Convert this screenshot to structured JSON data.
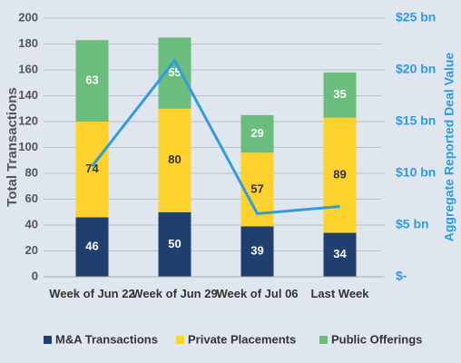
{
  "chart_data": {
    "type": "bar",
    "stacked": true,
    "categories": [
      "Week of Jun 22",
      "Week of Jun 29",
      "Week of Jul 06",
      "Last Week"
    ],
    "series": [
      {
        "name": "M&A Transactions",
        "color": "#1f3f6e",
        "label_color": "#ffffff",
        "values": [
          46,
          50,
          39,
          34
        ]
      },
      {
        "name": "Private Placements",
        "color": "#fdd22d",
        "label_color": "#333333",
        "values": [
          74,
          80,
          57,
          89
        ]
      },
      {
        "name": "Public Offerings",
        "color": "#6abd7c",
        "label_color": "#ffffff",
        "values": [
          63,
          55,
          29,
          35
        ]
      }
    ],
    "line": {
      "axis": "y2",
      "color": "#2f9be0",
      "values": [
        10.7,
        20.9,
        6.1,
        6.8
      ]
    },
    "ylabel": "Total Transactions",
    "y2label": "Aggregate Reported Deal Value",
    "ylim": [
      0,
      200
    ],
    "yticks": [
      0,
      20,
      40,
      60,
      80,
      100,
      120,
      140,
      160,
      180,
      200
    ],
    "y2lim": [
      0,
      25
    ],
    "y2ticks": [
      {
        "value": 0,
        "label": "$-"
      },
      {
        "value": 5,
        "label": "$5 bn"
      },
      {
        "value": 10,
        "label": "$10 bn"
      },
      {
        "value": 15,
        "label": "$15 bn"
      },
      {
        "value": 20,
        "label": "$20 bn"
      },
      {
        "value": 25,
        "label": "$25 bn"
      }
    ],
    "grid": true,
    "legend": "bottom"
  }
}
